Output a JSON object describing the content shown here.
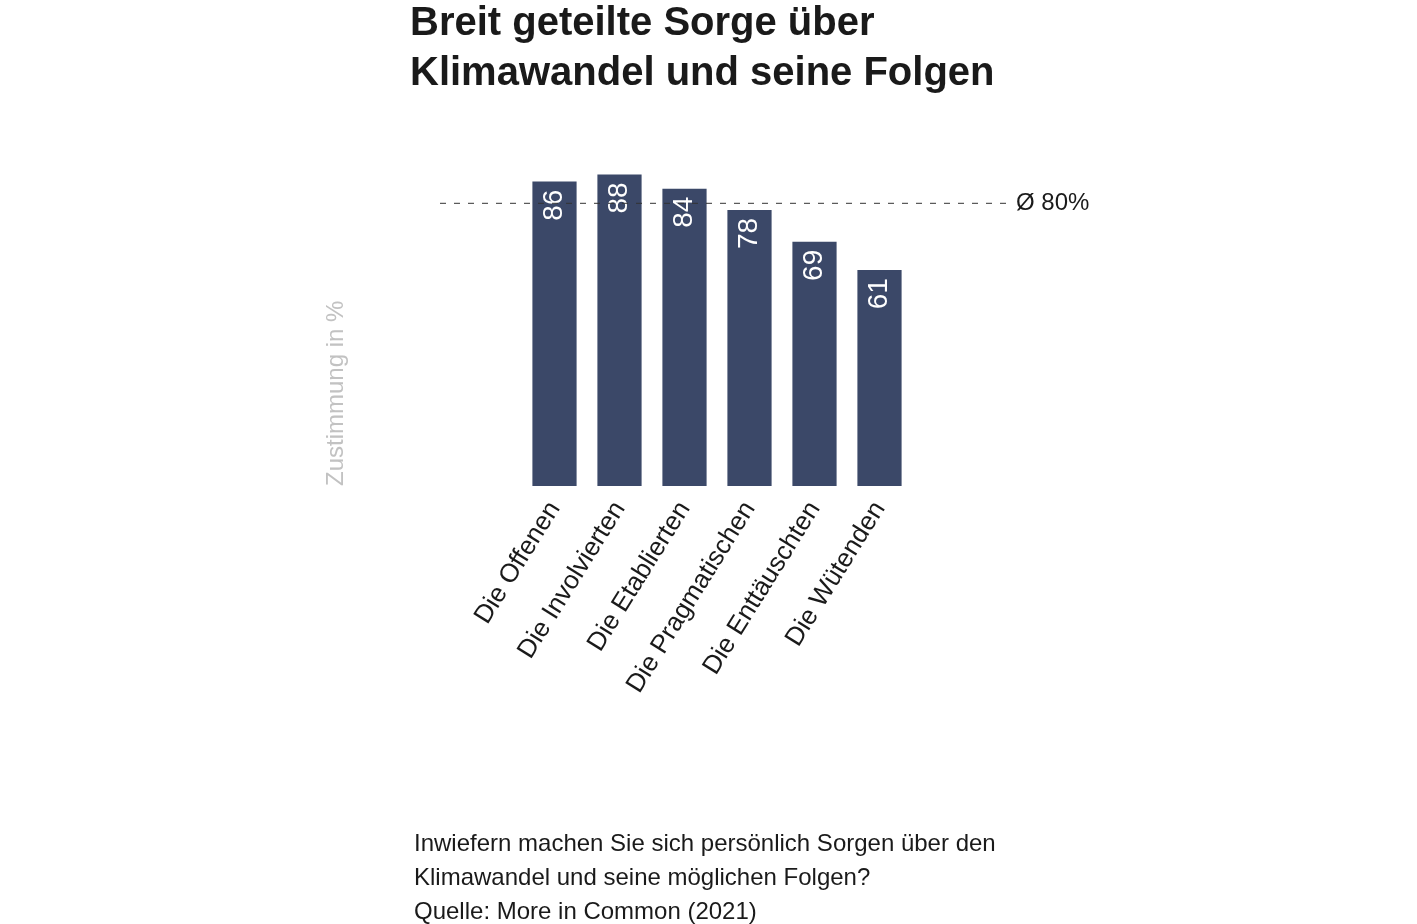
{
  "chart_data": {
    "type": "bar",
    "title": "Breit geteilte Sorge über Klimawandel und seine Folgen",
    "y_label": "Zustimmung in %",
    "categories": [
      "Die Offenen",
      "Die Involvierten",
      "Die Etablierten",
      "Die Pragmatischen",
      "Die Enttäuschten",
      "Die Wütenden"
    ],
    "values": [
      86,
      88,
      84,
      78,
      69,
      61
    ],
    "color": "#3b4868",
    "ylim": [
      0,
      100
    ],
    "grid": false,
    "tick_labels": "x",
    "data_labels": true,
    "annotations": [
      {
        "type": "hline",
        "value": 80,
        "label": "Ø 80%"
      }
    ],
    "caption": "Inwiefern machen Sie sich persönlich Sorgen über den Klimawandel und seine möglichen Folgen?",
    "source": "Quelle: More in Common (2021)"
  }
}
